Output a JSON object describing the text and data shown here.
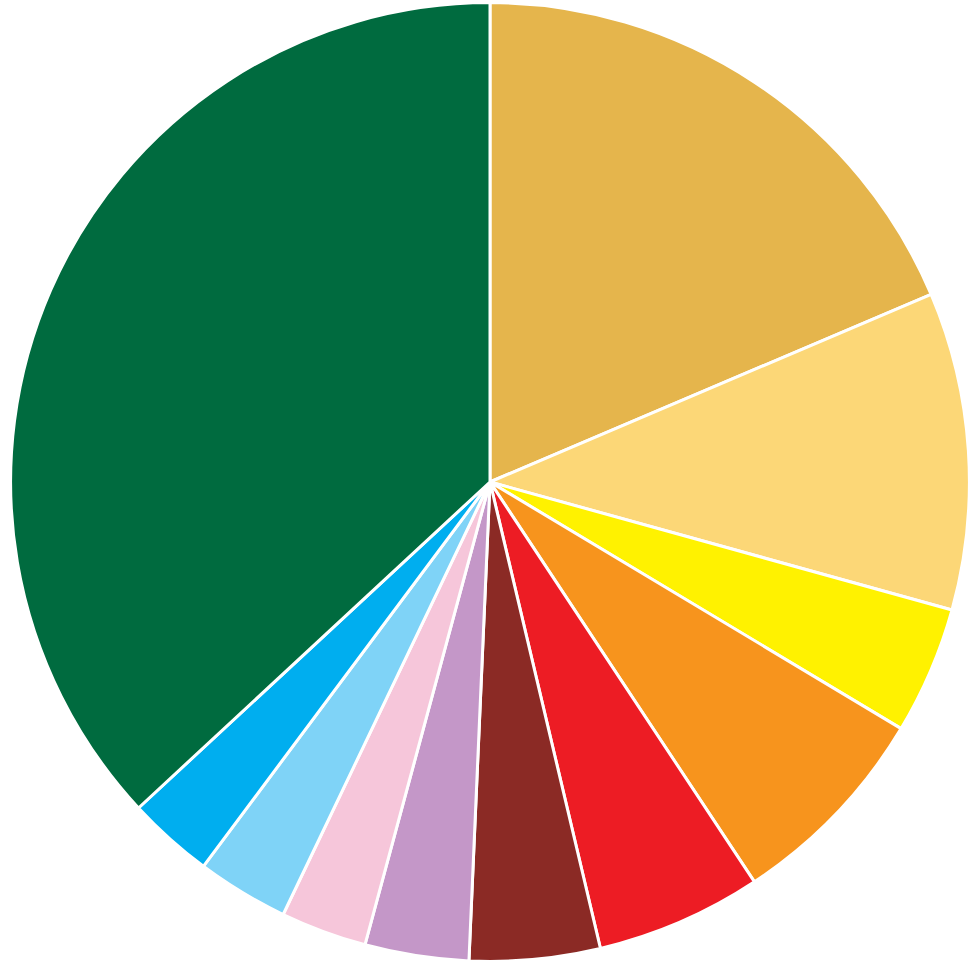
{
  "chart_data": {
    "type": "pie",
    "categories": [
      null,
      null,
      null,
      null,
      null,
      null,
      null,
      null,
      null,
      null,
      null
    ],
    "values": [
      18.6,
      10.7,
      4.3,
      7.1,
      5.6,
      4.4,
      3.5,
      2.9,
      3.1,
      2.9,
      36.9
    ],
    "colors": [
      "#e5b54c",
      "#fcd777",
      "#fff200",
      "#f7941d",
      "#ed1c24",
      "#8b2a25",
      "#c497c8",
      "#f6c6da",
      "#7fd3f7",
      "#00aeef",
      "#006b3f"
    ]
  }
}
